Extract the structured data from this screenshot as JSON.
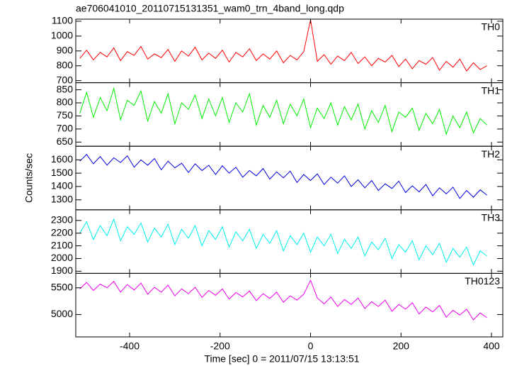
{
  "chart_data": {
    "type": "line",
    "title": "ae706041010_20110715131351_wam0_trn_4band_long.qdp",
    "xlabel": "Time [sec] 0 = 2011/07/15 13:13:51",
    "ylabel": "Counts/sec",
    "xlim": [
      -519,
      425
    ],
    "xticks": [
      -400,
      -200,
      0,
      200,
      400
    ],
    "x": [
      -510,
      -495,
      -480,
      -465,
      -450,
      -435,
      -420,
      -405,
      -390,
      -375,
      -360,
      -345,
      -330,
      -315,
      -300,
      -285,
      -270,
      -255,
      -240,
      -225,
      -210,
      -195,
      -180,
      -165,
      -150,
      -135,
      -120,
      -105,
      -90,
      -75,
      -60,
      -45,
      -30,
      -15,
      0,
      15,
      30,
      45,
      60,
      75,
      90,
      105,
      120,
      135,
      150,
      165,
      180,
      195,
      210,
      225,
      240,
      255,
      270,
      285,
      300,
      315,
      330,
      345,
      360,
      375,
      390
    ],
    "series": [
      {
        "name": "TH0",
        "color": "#ff0000",
        "ylim": [
          686,
          1114
        ],
        "yticks": [
          700,
          800,
          900,
          1000,
          1100
        ],
        "values": [
          850,
          905,
          840,
          890,
          860,
          920,
          835,
          895,
          870,
          930,
          845,
          880,
          855,
          910,
          830,
          900,
          865,
          925,
          840,
          885,
          850,
          905,
          825,
          890,
          860,
          915,
          835,
          880,
          845,
          900,
          820,
          870,
          840,
          895,
          1110,
          830,
          875,
          810,
          865,
          835,
          890,
          815,
          860,
          800,
          850,
          825,
          870,
          795,
          845,
          780,
          835,
          810,
          855,
          770,
          830,
          790,
          845,
          765,
          820,
          775,
          800
        ]
      },
      {
        "name": "TH1",
        "color": "#00ee00",
        "ylim": [
          634,
          877
        ],
        "yticks": [
          650,
          700,
          750,
          800,
          850
        ],
        "values": [
          760,
          840,
          745,
          820,
          770,
          855,
          735,
          810,
          790,
          845,
          730,
          805,
          760,
          835,
          720,
          800,
          775,
          830,
          740,
          815,
          750,
          820,
          725,
          800,
          765,
          835,
          715,
          790,
          745,
          810,
          720,
          795,
          750,
          815,
          705,
          780,
          740,
          800,
          715,
          785,
          735,
          795,
          700,
          770,
          725,
          790,
          690,
          765,
          745,
          780,
          695,
          760,
          720,
          775,
          680,
          750,
          705,
          765,
          685,
          740,
          715
        ]
      },
      {
        "name": "TH2",
        "color": "#0000dd",
        "ylim": [
          1225,
          1702
        ],
        "yticks": [
          1300,
          1400,
          1500,
          1600
        ],
        "values": [
          1590,
          1640,
          1570,
          1625,
          1560,
          1615,
          1580,
          1630,
          1545,
          1600,
          1560,
          1610,
          1525,
          1590,
          1540,
          1575,
          1505,
          1570,
          1520,
          1560,
          1490,
          1555,
          1500,
          1545,
          1470,
          1520,
          1480,
          1535,
          1455,
          1510,
          1465,
          1515,
          1430,
          1490,
          1445,
          1495,
          1415,
          1470,
          1425,
          1480,
          1400,
          1450,
          1390,
          1445,
          1370,
          1420,
          1385,
          1440,
          1355,
          1405,
          1360,
          1415,
          1330,
          1390,
          1345,
          1395,
          1310,
          1370,
          1320,
          1375,
          1335
        ]
      },
      {
        "name": "TH3",
        "color": "#00eeee",
        "ylim": [
          1883,
          2384
        ],
        "yticks": [
          1900,
          2000,
          2100,
          2200,
          2300
        ],
        "values": [
          2200,
          2290,
          2150,
          2260,
          2180,
          2310,
          2140,
          2250,
          2190,
          2280,
          2130,
          2240,
          2170,
          2270,
          2110,
          2230,
          2160,
          2260,
          2100,
          2220,
          2150,
          2250,
          2090,
          2210,
          2140,
          2230,
          2080,
          2190,
          2120,
          2220,
          2060,
          2180,
          2110,
          2200,
          2050,
          2170,
          2100,
          2190,
          2040,
          2150,
          2080,
          2170,
          2020,
          2130,
          2070,
          2160,
          2000,
          2110,
          2050,
          2140,
          1990,
          2100,
          2030,
          2120,
          1970,
          2080,
          2010,
          2090,
          1950,
          2060,
          2020
        ]
      },
      {
        "name": "TH0123",
        "color": "#ee00ee",
        "ylim": [
          4581,
          5770
        ],
        "yticks": [
          5000,
          5500
        ],
        "values": [
          5480,
          5600,
          5450,
          5570,
          5500,
          5620,
          5420,
          5560,
          5460,
          5590,
          5380,
          5510,
          5420,
          5550,
          5350,
          5480,
          5390,
          5510,
          5320,
          5450,
          5360,
          5480,
          5290,
          5410,
          5330,
          5440,
          5260,
          5390,
          5300,
          5420,
          5230,
          5350,
          5270,
          5380,
          5640,
          5310,
          5200,
          5330,
          5150,
          5280,
          5190,
          5310,
          5110,
          5240,
          5150,
          5270,
          5060,
          5190,
          5100,
          5220,
          5010,
          5140,
          5050,
          5170,
          4950,
          5080,
          4990,
          5100,
          4900,
          5030,
          4940
        ]
      }
    ]
  }
}
